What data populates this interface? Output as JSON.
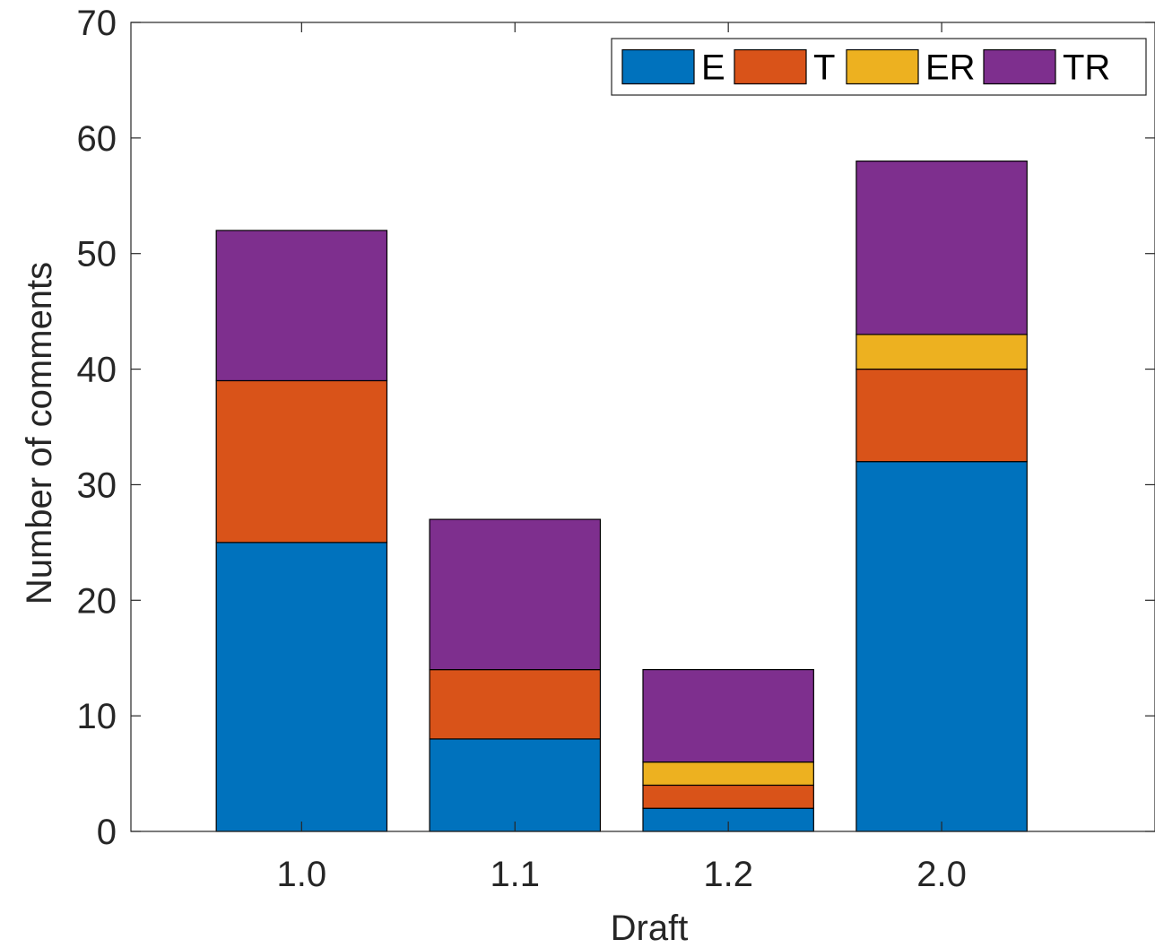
{
  "chart_data": {
    "type": "bar",
    "stacked": true,
    "categories": [
      "1.0",
      "1.1",
      "1.2",
      "2.0"
    ],
    "series": [
      {
        "name": "E",
        "color": "#0072BD",
        "values": [
          25,
          8,
          2,
          32
        ]
      },
      {
        "name": "T",
        "color": "#D95319",
        "values": [
          14,
          6,
          2,
          8
        ]
      },
      {
        "name": "ER",
        "color": "#EDB120",
        "values": [
          0,
          0,
          2,
          3
        ]
      },
      {
        "name": "TR",
        "color": "#7E2F8E",
        "values": [
          13,
          13,
          8,
          15
        ]
      }
    ],
    "title": "",
    "xlabel": "Draft",
    "ylabel": "Number of comments",
    "ylim": [
      0,
      70
    ],
    "yticks": [
      0,
      10,
      20,
      30,
      40,
      50,
      60,
      70
    ],
    "xlim": [
      0.2,
      5.0
    ],
    "grid": false,
    "legend_placement": "top-right",
    "legend_orientation": "horizontal"
  }
}
